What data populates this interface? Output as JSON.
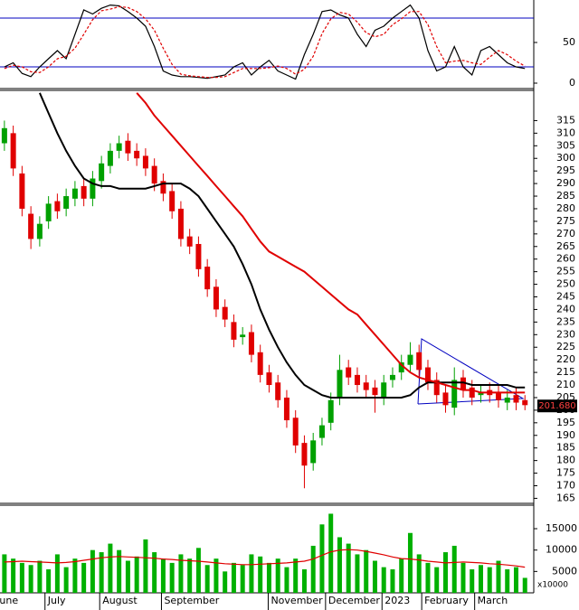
{
  "chart_data": [
    {
      "type": "line",
      "panel": "stochastic",
      "ylim": [
        0,
        100
      ],
      "yticks": [
        0,
        50
      ],
      "levels": [
        20,
        80
      ],
      "level_color": "#0000c0",
      "series": [
        {
          "style": "solid",
          "color": "#000000",
          "values": [
            20,
            25,
            12,
            8,
            20,
            30,
            40,
            30,
            60,
            90,
            85,
            92,
            96,
            95,
            88,
            80,
            70,
            45,
            15,
            10,
            8,
            8,
            7,
            6,
            8,
            10,
            20,
            25,
            10,
            20,
            28,
            15,
            10,
            5,
            35,
            60,
            88,
            90,
            84,
            80,
            60,
            45,
            65,
            70,
            80,
            88,
            96,
            80,
            40,
            15,
            20,
            45,
            20,
            10,
            40,
            45,
            35,
            25,
            20,
            18
          ]
        },
        {
          "style": "dashed",
          "color": "#e00000",
          "values": [
            18,
            22,
            20,
            14,
            13,
            20,
            30,
            33,
            43,
            60,
            78,
            89,
            91,
            94,
            93,
            88,
            79,
            65,
            43,
            23,
            11,
            9,
            8,
            7,
            7,
            8,
            13,
            18,
            18,
            18,
            19,
            21,
            18,
            11,
            17,
            33,
            61,
            79,
            87,
            85,
            75,
            62,
            57,
            60,
            72,
            79,
            88,
            88,
            72,
            45,
            25,
            27,
            28,
            25,
            23,
            32,
            40,
            35,
            27,
            21
          ]
        }
      ]
    },
    {
      "type": "candlestick",
      "panel": "price",
      "ylim": [
        163,
        327
      ],
      "yticks": [
        165,
        170,
        175,
        180,
        185,
        190,
        195,
        200,
        205,
        210,
        215,
        220,
        225,
        230,
        235,
        240,
        245,
        250,
        255,
        260,
        265,
        270,
        275,
        280,
        285,
        290,
        295,
        300,
        305,
        310,
        315
      ],
      "up_color": "#00a000",
      "down_color": "#e00000",
      "x": [
        0,
        1,
        2,
        3,
        4,
        5,
        6,
        7,
        8,
        9,
        10,
        11,
        12,
        13,
        14,
        15,
        16,
        17,
        18,
        19,
        20,
        21,
        22,
        23,
        24,
        25,
        26,
        27,
        28,
        29,
        30,
        31,
        32,
        33,
        34,
        35,
        36,
        37,
        38,
        39,
        40,
        41,
        42,
        43,
        44,
        45,
        46,
        47,
        48,
        49,
        50,
        51,
        52,
        53,
        54,
        55,
        56,
        57,
        58,
        59
      ],
      "open": [
        306,
        310,
        294,
        278,
        268,
        275,
        283,
        280,
        284,
        289,
        284,
        291,
        297,
        303,
        307,
        303,
        301,
        297,
        291,
        287,
        280,
        269,
        266,
        257,
        249,
        241,
        235,
        229,
        231,
        223,
        215,
        211,
        205,
        197,
        187,
        179,
        189,
        195,
        205,
        217,
        214,
        211,
        209,
        205,
        212,
        215,
        218,
        223,
        217,
        212,
        207,
        201,
        213,
        209,
        206,
        208,
        207,
        203,
        206,
        204
      ],
      "close": [
        312,
        296,
        280,
        268,
        274,
        282,
        279,
        285,
        288,
        284,
        292,
        298,
        303,
        306,
        302,
        300,
        296,
        290,
        286,
        279,
        268,
        265,
        256,
        248,
        240,
        236,
        228,
        230,
        222,
        214,
        210,
        204,
        196,
        186,
        178,
        188,
        194,
        204,
        216,
        213,
        210,
        208,
        206,
        211,
        214,
        219,
        222,
        216,
        211,
        206,
        202,
        212,
        208,
        205,
        207,
        206,
        204,
        205,
        203,
        202
      ],
      "high": [
        315,
        313,
        297,
        281,
        277,
        285,
        286,
        288,
        291,
        292,
        295,
        301,
        306,
        309,
        310,
        306,
        304,
        300,
        294,
        290,
        283,
        272,
        269,
        260,
        252,
        244,
        238,
        233,
        234,
        226,
        218,
        214,
        208,
        200,
        190,
        191,
        197,
        207,
        222,
        220,
        217,
        214,
        212,
        214,
        217,
        222,
        227,
        226,
        220,
        215,
        210,
        217,
        216,
        212,
        210,
        211,
        210,
        208,
        209,
        206
      ],
      "low": [
        303,
        293,
        277,
        264,
        265,
        272,
        276,
        277,
        281,
        281,
        281,
        288,
        294,
        300,
        299,
        297,
        293,
        287,
        283,
        276,
        265,
        262,
        253,
        245,
        237,
        233,
        225,
        226,
        219,
        211,
        207,
        201,
        193,
        183,
        169,
        176,
        186,
        192,
        202,
        210,
        207,
        205,
        199,
        202,
        209,
        212,
        215,
        213,
        208,
        203,
        199,
        198,
        205,
        202,
        203,
        203,
        201,
        200,
        200,
        200
      ],
      "series": [
        {
          "color": "#000000",
          "values": [
            null,
            null,
            null,
            null,
            326,
            318,
            310,
            303,
            297,
            292,
            290,
            289,
            289,
            288,
            288,
            288,
            288,
            289,
            290,
            290,
            290,
            288,
            285,
            280,
            275,
            270,
            265,
            258,
            250,
            240,
            232,
            225,
            219,
            214,
            210,
            208,
            206,
            205,
            205,
            205,
            205,
            205,
            205,
            205,
            205,
            205,
            206,
            209,
            211,
            211,
            211,
            211,
            211,
            210,
            210,
            210,
            210,
            210,
            209,
            209
          ]
        },
        {
          "color": "#e00000",
          "values": [
            null,
            null,
            null,
            null,
            null,
            null,
            null,
            null,
            null,
            null,
            null,
            null,
            null,
            null,
            null,
            326,
            322,
            317,
            313,
            309,
            305,
            301,
            297,
            293,
            289,
            285,
            281,
            277,
            272,
            267,
            263,
            261,
            259,
            257,
            255,
            252,
            249,
            246,
            243,
            240,
            238,
            234,
            230,
            226,
            222,
            218,
            215,
            213,
            212,
            211,
            210,
            209,
            208,
            208,
            207,
            207,
            207,
            207,
            207,
            207
          ]
        }
      ],
      "last_price": {
        "value": 201.68,
        "label": "201.680"
      }
    },
    {
      "type": "bar",
      "panel": "volume",
      "ylim": [
        0,
        20500
      ],
      "yticks": [
        5000,
        10000,
        15000
      ],
      "unit_label": "x10000",
      "color": "#00b000",
      "xlim": [
        -0.5,
        60
      ],
      "xticks": [
        {
          "value": -1.2,
          "label": "June"
        },
        {
          "value": 4.6,
          "label": "July"
        },
        {
          "value": 10.8,
          "label": "August"
        },
        {
          "value": 17.8,
          "label": "September"
        },
        {
          "value": 29.9,
          "label": "November"
        },
        {
          "value": 36.4,
          "label": "December"
        },
        {
          "value": 42.8,
          "label": "2023"
        },
        {
          "value": 47.3,
          "label": "February"
        },
        {
          "value": 53.3,
          "label": "March"
        }
      ],
      "values": [
        9000,
        8000,
        7000,
        6500,
        7500,
        5500,
        9000,
        6000,
        8000,
        7000,
        10000,
        9500,
        11500,
        10000,
        7500,
        8500,
        12500,
        9500,
        8000,
        7000,
        9000,
        8000,
        10500,
        6500,
        8000,
        5000,
        7000,
        6500,
        9000,
        8500,
        7000,
        8000,
        6000,
        8000,
        5500,
        11000,
        16000,
        18500,
        13000,
        11500,
        9000,
        10000,
        7500,
        6000,
        5500,
        8000,
        14000,
        9000,
        7000,
        6000,
        9500,
        11000,
        7000,
        5500,
        6500,
        6000,
        7500,
        5500,
        6000,
        3500
      ],
      "series": [
        {
          "color": "#e00000",
          "values": [
            7200,
            7300,
            7400,
            7300,
            7200,
            7100,
            7000,
            7100,
            7300,
            7600,
            7900,
            8200,
            8400,
            8500,
            8400,
            8300,
            8200,
            8100,
            7900,
            7800,
            7600,
            7500,
            7400,
            7200,
            7000,
            6800,
            6700,
            6600,
            6600,
            6700,
            6800,
            6900,
            7000,
            7200,
            7400,
            7900,
            8800,
            9600,
            10000,
            10100,
            10000,
            9700,
            9300,
            8900,
            8400,
            8000,
            7900,
            7700,
            7400,
            7200,
            7000,
            7100,
            7200,
            7100,
            7000,
            6800,
            6700,
            6500,
            6300,
            6000
          ]
        }
      ]
    }
  ]
}
